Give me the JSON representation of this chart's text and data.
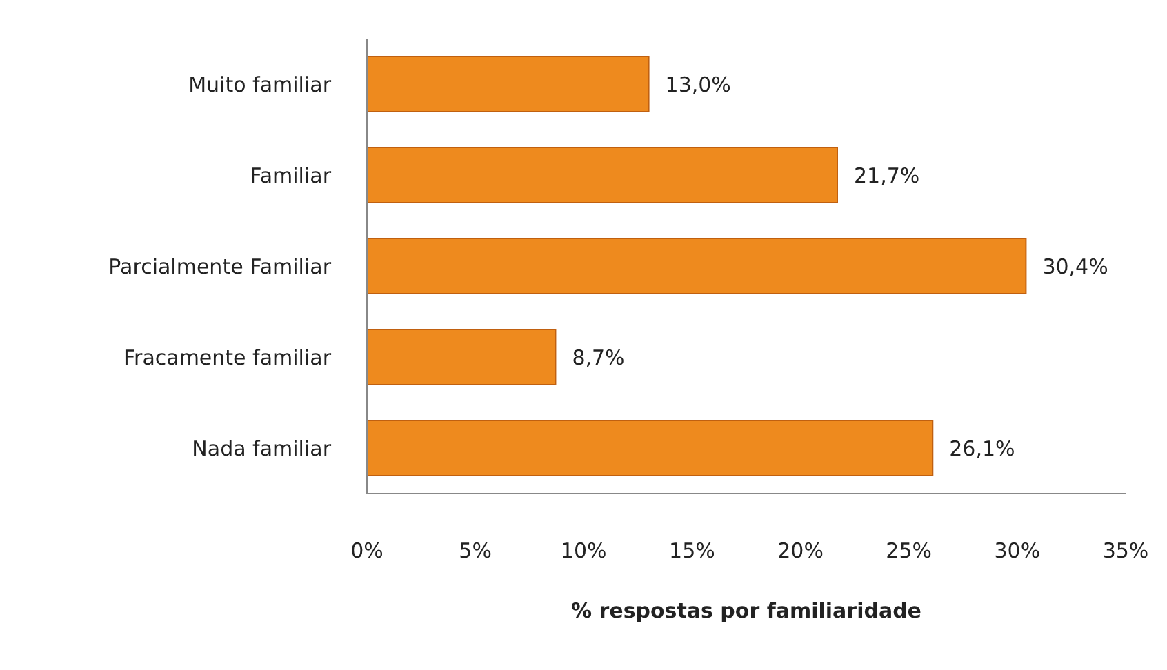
{
  "chart_data": {
    "type": "bar",
    "orientation": "horizontal",
    "xlabel": "% respostas por familiaridade",
    "categories": [
      "Muito familiar",
      "Familiar",
      "Parcialmente Familiar",
      "Fracamente familiar",
      "Nada familiar"
    ],
    "values": [
      13.0,
      21.7,
      30.4,
      8.7,
      26.1
    ],
    "value_labels": [
      "13,0%",
      "21,7%",
      "30,4%",
      "8,7%",
      "26,1%"
    ],
    "color": "#ee8a1e",
    "xlim": [
      0,
      35
    ],
    "xticks": [
      {
        "value": 0,
        "label": "0%"
      },
      {
        "value": 5,
        "label": "5%"
      },
      {
        "value": 10,
        "label": "10%"
      },
      {
        "value": 15,
        "label": "15%"
      },
      {
        "value": 20,
        "label": "20%"
      },
      {
        "value": 25,
        "label": "25%"
      },
      {
        "value": 30,
        "label": "30%"
      },
      {
        "value": 35,
        "label": "35%"
      }
    ],
    "grid": false
  }
}
